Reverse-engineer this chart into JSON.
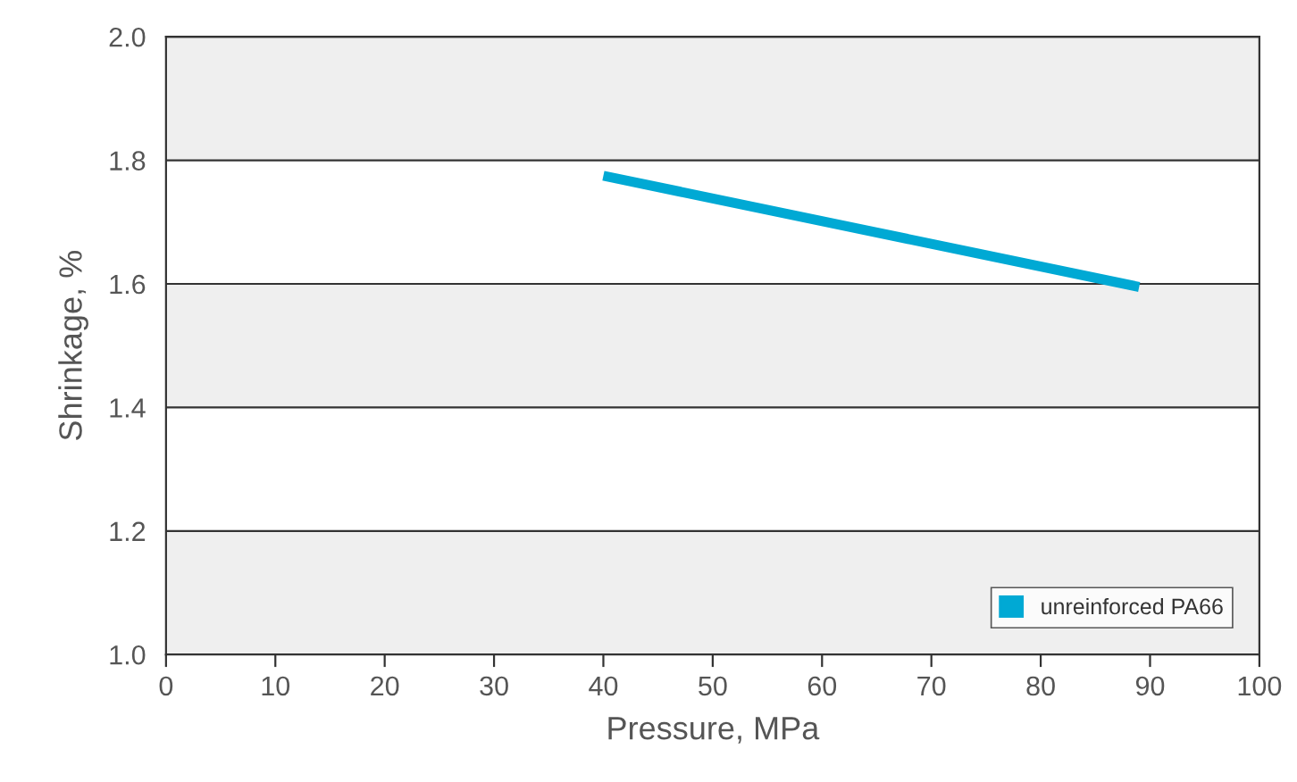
{
  "chart_data": {
    "type": "line",
    "xlabel": "Pressure, MPa",
    "ylabel": "Shrinkage, %",
    "x": [
      40,
      89
    ],
    "series": [
      {
        "name": "unreinforced PA66",
        "color": "#00a9d4",
        "values": [
          1.775,
          1.595
        ]
      }
    ],
    "xlim": [
      0,
      100
    ],
    "xticks": [
      0,
      10,
      20,
      30,
      40,
      50,
      60,
      70,
      80,
      90,
      100
    ],
    "ylim": [
      1.0,
      2.0
    ],
    "yticks": [
      {
        "value": 1.0,
        "label": "1.0"
      },
      {
        "value": 1.2,
        "label": "1.2"
      },
      {
        "value": 1.4,
        "label": "1.4"
      },
      {
        "value": 1.6,
        "label": "1.6"
      },
      {
        "value": 1.8,
        "label": "1.8"
      },
      {
        "value": 2.0,
        "label": "2.0"
      }
    ],
    "bands": [
      {
        "axis": "y",
        "from": 1.0,
        "to": 1.2,
        "color": "#efefef"
      },
      {
        "axis": "y",
        "from": 1.4,
        "to": 1.6,
        "color": "#efefef"
      },
      {
        "axis": "y",
        "from": 1.8,
        "to": 2.0,
        "color": "#efefef"
      }
    ],
    "grid": "y",
    "legend": "bottom right",
    "marker": "none",
    "line_style": "solid"
  }
}
